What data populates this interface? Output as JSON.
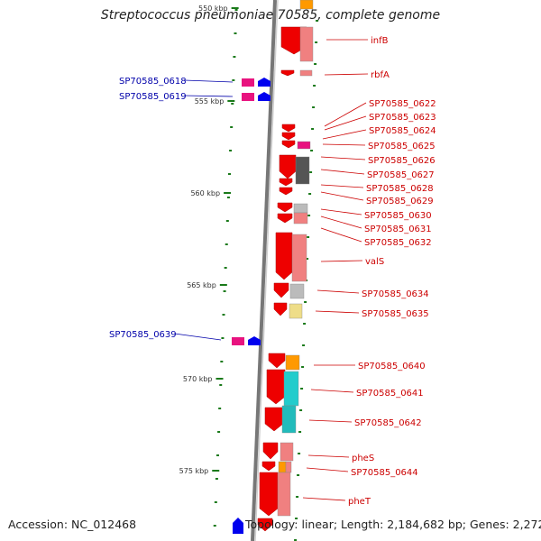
{
  "title": "Streptococcus pneumoniae 70585, complete genome",
  "footer": {
    "accession": "Accession: NC_012468",
    "summary": "Topology: linear; Length: 2,184,682 bp; Genes: 2,272"
  },
  "colors": {
    "red_label": "#cc0000",
    "blue_label": "#0000aa",
    "tick": "#1a7a1a",
    "backbone": "#777777",
    "cds": "#ee0000",
    "magenta": "#e8137f",
    "blue_gene": "#0000ee"
  },
  "scale_labels": [
    "550 kbp",
    "555 kbp",
    "560 kbp",
    "565 kbp",
    "570 kbp",
    "575 kbp"
  ],
  "left_labels": [
    "SP70585_0618",
    "SP70585_0619",
    "SP70585_0639"
  ],
  "right_labels": [
    "infB",
    "rbfA",
    "SP70585_0622",
    "SP70585_0623",
    "SP70585_0624",
    "SP70585_0625",
    "SP70585_0626",
    "SP70585_0627",
    "SP70585_0628",
    "SP70585_0629",
    "SP70585_0630",
    "SP70585_0631",
    "SP70585_0632",
    "valS",
    "SP70585_0634",
    "SP70585_0635",
    "SP70585_0640",
    "SP70585_0641",
    "SP70585_0642",
    "pheS",
    "SP70585_0644",
    "pheT"
  ]
}
